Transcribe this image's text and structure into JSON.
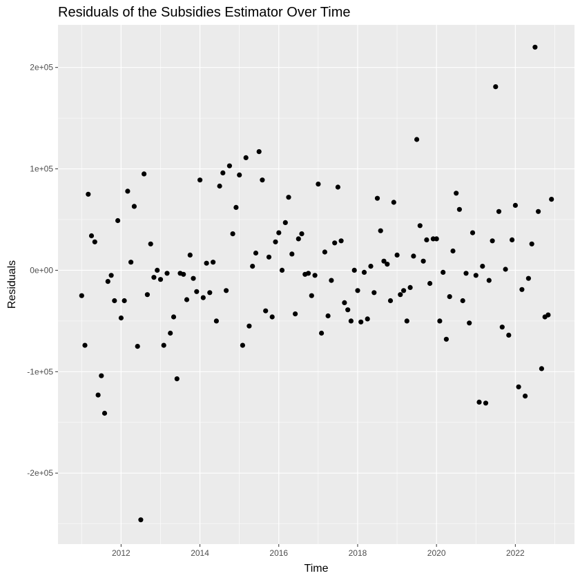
{
  "chart_data": {
    "type": "scatter",
    "title": "Residuals of the Subsidies Estimator Over Time",
    "xlabel": "Time",
    "ylabel": "Residuals",
    "xlim": [
      2010.4,
      2023.5
    ],
    "ylim": [
      -270000,
      242000
    ],
    "x_ticks": [
      2012,
      2014,
      2016,
      2018,
      2020,
      2022
    ],
    "x_tick_labels": [
      "2012",
      "2014",
      "2016",
      "2018",
      "2020",
      "2022"
    ],
    "y_ticks": [
      -200000,
      -100000,
      0,
      100000,
      200000
    ],
    "y_tick_labels": [
      "-2e+05",
      "-1e+05",
      "0e+00",
      "1e+05",
      "2e+05"
    ],
    "grid": true,
    "legend": "none",
    "colors": {
      "panel": "#ebebeb",
      "grid": "#ffffff",
      "point": "#000000",
      "tick_text": "#4d4d4d"
    },
    "series": [
      {
        "x": [
          2011.0,
          2011.083,
          2011.167,
          2011.25,
          2011.333,
          2011.417,
          2011.5,
          2011.583,
          2011.667,
          2011.75,
          2011.833,
          2011.917,
          2012.0,
          2012.083,
          2012.167,
          2012.25,
          2012.333,
          2012.417,
          2012.5,
          2012.583,
          2012.667,
          2012.75,
          2012.833,
          2012.917,
          2013.0,
          2013.083,
          2013.167,
          2013.25,
          2013.333,
          2013.417,
          2013.5,
          2013.583,
          2013.667,
          2013.75,
          2013.833,
          2013.917,
          2014.0,
          2014.083,
          2014.167,
          2014.25,
          2014.333,
          2014.417,
          2014.5,
          2014.583,
          2014.667,
          2014.75,
          2014.833,
          2014.917,
          2015.0,
          2015.083,
          2015.167,
          2015.25,
          2015.333,
          2015.417,
          2015.5,
          2015.583,
          2015.667,
          2015.75,
          2015.833,
          2015.917,
          2016.0,
          2016.083,
          2016.167,
          2016.25,
          2016.333,
          2016.417,
          2016.5,
          2016.583,
          2016.667,
          2016.75,
          2016.833,
          2016.917,
          2017.0,
          2017.083,
          2017.167,
          2017.25,
          2017.333,
          2017.417,
          2017.5,
          2017.583,
          2017.667,
          2017.75,
          2017.833,
          2017.917,
          2018.0,
          2018.083,
          2018.167,
          2018.25,
          2018.333,
          2018.417,
          2018.5,
          2018.583,
          2018.667,
          2018.75,
          2018.833,
          2018.917,
          2019.0,
          2019.083,
          2019.167,
          2019.25,
          2019.333,
          2019.417,
          2019.5,
          2019.583,
          2019.667,
          2019.75,
          2019.833,
          2019.917,
          2020.0,
          2020.083,
          2020.167,
          2020.25,
          2020.333,
          2020.417,
          2020.5,
          2020.583,
          2020.667,
          2020.75,
          2020.833,
          2020.917,
          2021.0,
          2021.083,
          2021.167,
          2021.25,
          2021.333,
          2021.417,
          2021.5,
          2021.583,
          2021.667,
          2021.75,
          2021.833,
          2021.917,
          2022.0,
          2022.083,
          2022.167,
          2022.25,
          2022.333,
          2022.417,
          2022.5,
          2022.583,
          2022.667,
          2022.75,
          2022.833,
          2022.917
        ],
        "y": [
          -25000,
          -74000,
          75000,
          34000,
          28000,
          -123000,
          -104000,
          -141000,
          -11000,
          -5000,
          -30000,
          49000,
          -47000,
          -30000,
          78000,
          8000,
          63000,
          -75000,
          -246000,
          95000,
          -24000,
          26000,
          -7000,
          0,
          -9000,
          -74000,
          -3000,
          -62000,
          -46000,
          -107000,
          -3000,
          -4000,
          -29000,
          15000,
          -8000,
          -21000,
          89000,
          -27000,
          7000,
          -22000,
          8000,
          -50000,
          83000,
          96000,
          -20000,
          103000,
          36000,
          62000,
          94000,
          -74000,
          111000,
          -55000,
          4000,
          17000,
          117000,
          89000,
          -40000,
          13000,
          -46000,
          28000,
          37000,
          0,
          47000,
          72000,
          16000,
          -43000,
          31000,
          36000,
          -4000,
          -3000,
          -25000,
          -5000,
          85000,
          -62000,
          18000,
          -45000,
          -10000,
          27000,
          82000,
          29000,
          -32000,
          -39000,
          -50000,
          0,
          -20000,
          -51000,
          -2000,
          -48000,
          4000,
          -22000,
          71000,
          39000,
          9000,
          6000,
          -30000,
          67000,
          15000,
          -24000,
          -20000,
          -50000,
          -17000,
          14000,
          129000,
          44000,
          9000,
          30000,
          -13000,
          31000,
          31000,
          -50000,
          -2000,
          -68000,
          -26000,
          19000,
          76000,
          60000,
          -30000,
          -3000,
          -52000,
          37000,
          -5000,
          -130000,
          4000,
          -131000,
          -10000,
          29000,
          181000,
          58000,
          -56000,
          1000,
          -64000,
          30000,
          64000,
          -115000,
          -19000,
          -124000,
          -8000,
          26000,
          220000,
          58000,
          -97000,
          -46000,
          -44000,
          70000
        ]
      }
    ]
  }
}
